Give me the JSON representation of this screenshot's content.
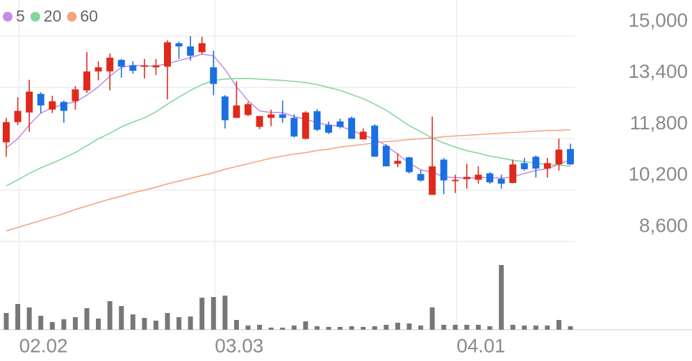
{
  "chart_data": {
    "type": "candlestick",
    "categories": [
      null,
      "02.02",
      null,
      null,
      null,
      null,
      null,
      null,
      null,
      null,
      null,
      null,
      null,
      null,
      null,
      null,
      null,
      null,
      "03.03",
      null,
      null,
      null,
      null,
      null,
      null,
      null,
      null,
      null,
      null,
      null,
      null,
      null,
      null,
      null,
      null,
      null,
      null,
      null,
      null,
      "04.01",
      null,
      null,
      null,
      null,
      null,
      null,
      null,
      null,
      null,
      null
    ],
    "open": [
      11690,
      12320,
      12620,
      13200,
      12710,
      12950,
      12970,
      13310,
      13900,
      13900,
      14260,
      14090,
      14050,
      14030,
      14050,
      14780,
      14680,
      14500,
      14030,
      13120,
      12450,
      12540,
      12170,
      12450,
      12560,
      12450,
      11800,
      12660,
      12230,
      12340,
      12450,
      11780,
      12210,
      11580,
      11020,
      11220,
      10700,
      10050,
      11150,
      10480,
      10540,
      10520,
      10720,
      10550,
      10420,
      11040,
      11240,
      10870,
      11000,
      11480
    ],
    "high": [
      12450,
      13100,
      13640,
      13250,
      13140,
      12990,
      13440,
      14500,
      14220,
      14460,
      14290,
      14220,
      14290,
      14290,
      14870,
      14830,
      15000,
      14980,
      14550,
      13160,
      13590,
      12950,
      12510,
      12710,
      12990,
      12560,
      12660,
      12730,
      12340,
      12430,
      12490,
      12120,
      12250,
      11630,
      11350,
      11240,
      10830,
      12490,
      11200,
      10680,
      11020,
      10940,
      10760,
      10680,
      11150,
      11200,
      11280,
      11200,
      11800,
      11650
    ],
    "low": [
      11240,
      12230,
      12020,
      12600,
      12600,
      12300,
      12710,
      13230,
      13620,
      13310,
      13700,
      13830,
      13680,
      13790,
      13030,
      14290,
      14240,
      14440,
      13160,
      12120,
      12450,
      12510,
      12100,
      12190,
      12300,
      11840,
      11780,
      12040,
      11950,
      12120,
      11800,
      11780,
      11240,
      10940,
      10910,
      10720,
      10460,
      10050,
      10070,
      10110,
      10240,
      10400,
      10400,
      10240,
      10420,
      10810,
      10590,
      10590,
      10810,
      10980
    ],
    "close": [
      12320,
      12670,
      13270,
      12840,
      12970,
      12670,
      13340,
      13900,
      14030,
      14330,
      14050,
      13920,
      14090,
      14090,
      14810,
      14680,
      14390,
      14780,
      13510,
      12380,
      12840,
      12880,
      12510,
      12560,
      12450,
      11870,
      12620,
      12080,
      11990,
      12170,
      11800,
      12020,
      11240,
      10940,
      11110,
      10760,
      10500,
      10940,
      10500,
      10520,
      10610,
      10680,
      10440,
      10400,
      11000,
      10850,
      10870,
      11040,
      11460,
      11000
    ],
    "volume": [
      24,
      37,
      32,
      20,
      11,
      15,
      18,
      31,
      16,
      41,
      34,
      22,
      17,
      13,
      24,
      18,
      19,
      46,
      47,
      49,
      14,
      6,
      7,
      3,
      3,
      6,
      12,
      5,
      4,
      4,
      5,
      4,
      5,
      7,
      10,
      9,
      6,
      32,
      7,
      7,
      7,
      7,
      5,
      93,
      7,
      6,
      6,
      6,
      14,
      5
    ],
    "up_color": "#e0291b",
    "down_color": "#1a6fe3",
    "volume_color": "#777777",
    "series": [
      {
        "name": "5",
        "color": "#c88de3",
        "values": [
          11520,
          11800,
          12230,
          12600,
          12770,
          12880,
          12950,
          13160,
          13420,
          13750,
          14030,
          14090,
          14070,
          14070,
          14140,
          14240,
          14330,
          14440,
          14390,
          13960,
          13420,
          12990,
          12670,
          12620,
          12620,
          12490,
          12410,
          12300,
          12230,
          12190,
          12060,
          11910,
          11800,
          11580,
          11320,
          11040,
          10830,
          10760,
          10610,
          10590,
          10570,
          10590,
          10590,
          10570,
          10610,
          10720,
          10810,
          10870,
          11000,
          11150
        ]
      },
      {
        "name": "20",
        "color": "#84d69d",
        "values": [
          10330,
          10520,
          10720,
          10890,
          11040,
          11200,
          11370,
          11580,
          11800,
          11970,
          12170,
          12320,
          12450,
          12640,
          12880,
          13100,
          13310,
          13490,
          13620,
          13660,
          13680,
          13680,
          13660,
          13640,
          13620,
          13590,
          13550,
          13490,
          13400,
          13310,
          13180,
          13050,
          12880,
          12690,
          12450,
          12210,
          12020,
          11820,
          11670,
          11540,
          11430,
          11350,
          11260,
          11200,
          11130,
          11090,
          11040,
          11000,
          10980,
          10940
        ]
      },
      {
        "name": "60",
        "color": "#f2a57e",
        "values": [
          8925,
          9033,
          9141,
          9249,
          9357,
          9465,
          9595,
          9703,
          9811,
          9919,
          10006,
          10114,
          10200,
          10287,
          10395,
          10481,
          10568,
          10654,
          10741,
          10849,
          10935,
          11022,
          11108,
          11195,
          11259,
          11324,
          11368,
          11432,
          11476,
          11541,
          11584,
          11627,
          11670,
          11714,
          11735,
          11778,
          11800,
          11822,
          11865,
          11887,
          11908,
          11930,
          11951,
          11973,
          11995,
          12016,
          12038,
          12059,
          12059,
          12081
        ]
      }
    ],
    "ylim": [
      8600,
      15000
    ],
    "yticks": [
      {
        "value": 8600,
        "label": "8,600"
      },
      {
        "value": 10200,
        "label": "10,200"
      },
      {
        "value": 11800,
        "label": "11,800"
      },
      {
        "value": 13400,
        "label": "13,400"
      },
      {
        "value": 15000,
        "label": "15,000"
      }
    ],
    "grid": true
  }
}
